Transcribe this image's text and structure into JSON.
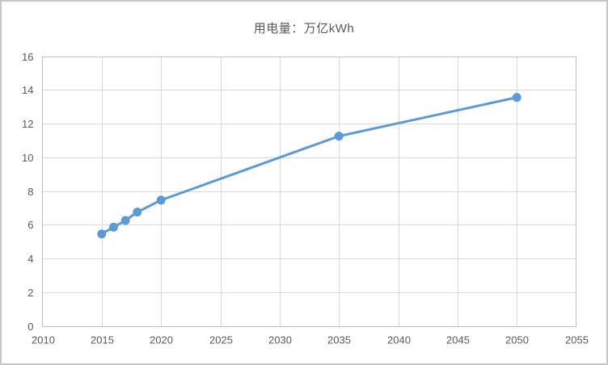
{
  "chart_data": {
    "type": "line",
    "title": "用电量：万亿kWh",
    "x": [
      2015,
      2016,
      2017,
      2018,
      2020,
      2035,
      2050
    ],
    "y": [
      5.5,
      5.9,
      6.3,
      6.8,
      7.5,
      11.3,
      13.6
    ],
    "xlim": [
      2010,
      2055
    ],
    "ylim": [
      0,
      16
    ],
    "x_ticks": [
      2010,
      2015,
      2020,
      2025,
      2030,
      2035,
      2040,
      2045,
      2050,
      2055
    ],
    "y_ticks": [
      0,
      2,
      4,
      6,
      8,
      10,
      12,
      14,
      16
    ],
    "grid": true,
    "legend": "none",
    "marker": "circle",
    "colors": {
      "series": "#5B9BD5",
      "gridline": "#D9D9D9",
      "axis_line": "#BFBFBF",
      "tick_label": "#595959",
      "title": "#595959",
      "frame_border": "#C6C6C6",
      "background": "#FFFFFF"
    }
  }
}
